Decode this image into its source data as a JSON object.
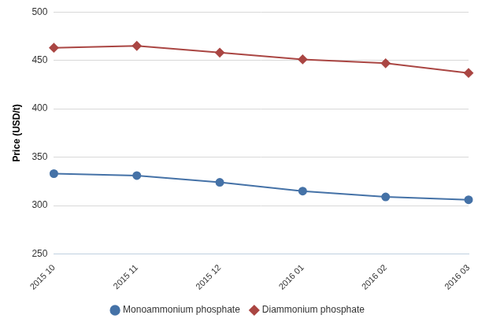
{
  "chart_data": {
    "type": "line",
    "y_label": "Price (USD/t)",
    "categories": [
      "2015 10",
      "2015 11",
      "2015 12",
      "2016 01",
      "2016 02",
      "2016 03"
    ],
    "series": [
      {
        "name": "Monoammonium phosphate",
        "color": "#4572a7",
        "marker": "circle",
        "values": [
          333,
          331,
          324,
          315,
          309,
          306
        ]
      },
      {
        "name": "Diammonium phosphate",
        "color": "#aa4643",
        "marker": "diamond",
        "values": [
          463,
          465,
          458,
          451,
          447,
          437
        ]
      }
    ],
    "ylim": [
      250,
      500
    ],
    "yticks": [
      250,
      300,
      350,
      400,
      450,
      500
    ],
    "grid": true,
    "legend": "bottom"
  }
}
